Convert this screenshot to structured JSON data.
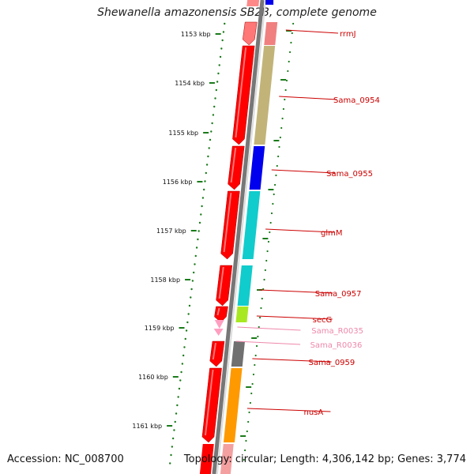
{
  "title": "Shewanella amazonensis SB2B, complete genome",
  "footer": {
    "accession": "Accession: NC_008700",
    "topology": "Topology: circular; Length: 4,306,142 bp; Genes: 3,774"
  },
  "colors": {
    "cds": "#ff0000",
    "trna": "#ff9ec0",
    "label": "#cc0000",
    "label_light": "#ee88aa",
    "tick": "#1a7a1a",
    "axis": "#888888"
  },
  "scale_labels": [
    "1153 kbp",
    "1154 kbp",
    "1155 kbp",
    "1156 kbp",
    "1157 kbp",
    "1158 kbp",
    "1159 kbp",
    "1160 kbp",
    "1161 kbp"
  ],
  "genes": [
    {
      "name": "rrmJ",
      "color": "#ff7777",
      "outer": "#f08080"
    },
    {
      "name": "Sama_0954",
      "color": "#ff0000",
      "outer": "#c2b478"
    },
    {
      "name": "Sama_0955",
      "color": "#ff0000",
      "outer": "#0000ee"
    },
    {
      "name": "glmM",
      "color": "#ff0000",
      "outer": "#11cccc"
    },
    {
      "name": "Sama_0957",
      "color": "#ff0000",
      "outer": "#11cccc"
    },
    {
      "name": "secG",
      "color": "#ff0000",
      "outer": "#a8e820"
    },
    {
      "name": "Sama_R0035",
      "color": "#ff9ec0",
      "outer": "none"
    },
    {
      "name": "Sama_R0036",
      "color": "#ff9ec0",
      "outer": "none"
    },
    {
      "name": "Sama_0959",
      "color": "#ff0000",
      "outer": "#707070"
    },
    {
      "name": "nusA",
      "color": "#ff0000",
      "outer": "#ff9900"
    }
  ]
}
